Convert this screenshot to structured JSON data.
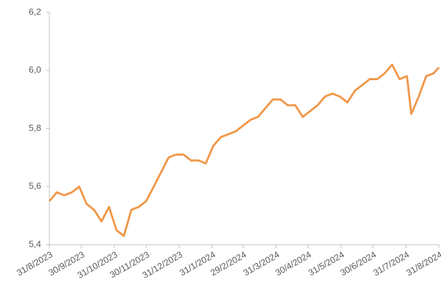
{
  "chart_data": {
    "type": "line",
    "x": [
      "2023-08-31",
      "2023-09-07",
      "2023-09-14",
      "2023-09-21",
      "2023-09-28",
      "2023-10-05",
      "2023-10-12",
      "2023-10-19",
      "2023-10-26",
      "2023-11-02",
      "2023-11-09",
      "2023-11-16",
      "2023-11-23",
      "2023-11-30",
      "2023-12-07",
      "2023-12-14",
      "2023-12-21",
      "2023-12-28",
      "2024-01-04",
      "2024-01-11",
      "2024-01-18",
      "2024-01-25",
      "2024-02-01",
      "2024-02-08",
      "2024-02-15",
      "2024-02-22",
      "2024-02-29",
      "2024-03-07",
      "2024-03-14",
      "2024-03-21",
      "2024-03-28",
      "2024-04-04",
      "2024-04-11",
      "2024-04-18",
      "2024-04-25",
      "2024-05-02",
      "2024-05-09",
      "2024-05-16",
      "2024-05-23",
      "2024-05-30",
      "2024-06-06",
      "2024-06-13",
      "2024-06-20",
      "2024-06-27",
      "2024-07-04",
      "2024-07-11",
      "2024-07-18",
      "2024-07-25",
      "2024-08-01",
      "2024-08-05",
      "2024-08-12",
      "2024-08-19",
      "2024-08-26",
      "2024-08-31"
    ],
    "series": [
      {
        "color": "#f0984a",
        "values": [
          5.55,
          5.58,
          5.57,
          5.58,
          5.6,
          5.54,
          5.52,
          5.48,
          5.53,
          5.45,
          5.43,
          5.52,
          5.53,
          5.55,
          5.6,
          5.65,
          5.7,
          5.71,
          5.71,
          5.69,
          5.69,
          5.68,
          5.74,
          5.77,
          5.78,
          5.79,
          5.81,
          5.83,
          5.84,
          5.87,
          5.9,
          5.9,
          5.88,
          5.88,
          5.84,
          5.86,
          5.88,
          5.91,
          5.92,
          5.91,
          5.89,
          5.93,
          5.95,
          5.97,
          5.97,
          5.99,
          6.02,
          5.97,
          5.98,
          5.85,
          5.91,
          5.98,
          5.99,
          6.01
        ]
      }
    ],
    "xlim": [
      "2023-08-31",
      "2024-08-31"
    ],
    "xticks": [
      {
        "value": "2023-08-31",
        "label": "31/8/2023"
      },
      {
        "value": "2023-09-30",
        "label": "30/9/2023"
      },
      {
        "value": "2023-10-31",
        "label": "31/10/2023"
      },
      {
        "value": "2023-11-30",
        "label": "30/11/2023"
      },
      {
        "value": "2023-12-31",
        "label": "31/12/2023"
      },
      {
        "value": "2024-01-31",
        "label": "31/1/2024"
      },
      {
        "value": "2024-02-29",
        "label": "29/2/2024"
      },
      {
        "value": "2024-03-31",
        "label": "31/3/2024"
      },
      {
        "value": "2024-04-30",
        "label": "30/4/2024"
      },
      {
        "value": "2024-05-31",
        "label": "31/5/2024"
      },
      {
        "value": "2024-06-30",
        "label": "30/6/2024"
      },
      {
        "value": "2024-07-31",
        "label": "31/7/2024"
      },
      {
        "value": "2024-08-31",
        "label": "31/8/2024"
      }
    ],
    "ylim": [
      5.4,
      6.2
    ],
    "yticks": [
      {
        "value": 5.4,
        "label": "5,4"
      },
      {
        "value": 5.6,
        "label": "5,6"
      },
      {
        "value": 5.8,
        "label": "5,8"
      },
      {
        "value": 6.0,
        "label": "6,0"
      },
      {
        "value": 6.2,
        "label": "6,2"
      }
    ]
  }
}
